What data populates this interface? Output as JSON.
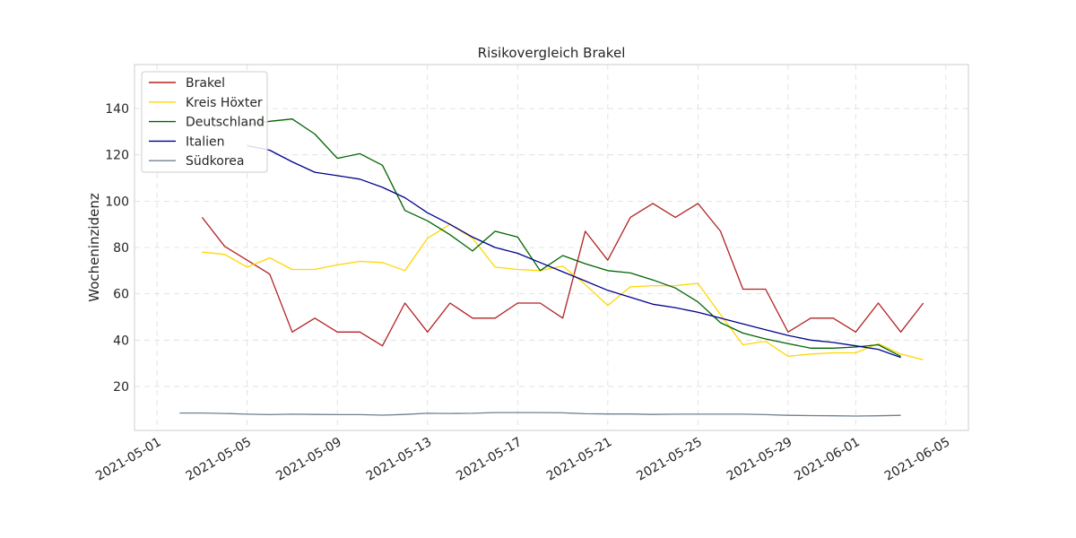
{
  "chart_data": {
    "type": "line",
    "title": "Risikovergleich Brakel",
    "xlabel": "",
    "ylabel": "Wocheninzidenz",
    "xlim": [
      "2021-04-30",
      "2021-06-06"
    ],
    "ylim": [
      1,
      159
    ],
    "x_ticks": [
      "2021-05-01",
      "2021-05-05",
      "2021-05-09",
      "2021-05-13",
      "2021-05-17",
      "2021-05-21",
      "2021-05-25",
      "2021-05-29",
      "2021-06-01",
      "2021-06-05"
    ],
    "y_ticks": [
      20,
      40,
      60,
      80,
      100,
      120,
      140
    ],
    "grid": true,
    "legend_position": "top-left",
    "series": [
      {
        "name": "Brakel",
        "color": "#b22222",
        "start": "2021-05-03",
        "values": [
          93,
          80.5,
          74.5,
          68.5,
          43.5,
          49.5,
          43.5,
          43.5,
          37.5,
          56,
          43.5,
          56,
          49.5,
          49.5,
          56,
          56,
          49.5,
          87,
          74.5,
          93,
          99,
          93,
          99,
          87,
          62,
          62,
          43.5,
          49.5,
          49.5,
          43.5,
          56,
          43.5,
          56
        ]
      },
      {
        "name": "Kreis Höxter",
        "color": "#ffd700",
        "start": "2021-05-03",
        "values": [
          78,
          77,
          71.5,
          75.5,
          70.5,
          70.5,
          72.5,
          74,
          73.5,
          70,
          84,
          90,
          84,
          71.5,
          70.5,
          70,
          72,
          64,
          55,
          63,
          63.5,
          63.5,
          64.5,
          51,
          38,
          39.5,
          33,
          34,
          34.5,
          34.5,
          38.5,
          34,
          31.5
        ]
      },
      {
        "name": "Deutschland",
        "color": "#006400",
        "start": "2021-05-05",
        "values": [
          133,
          134.5,
          135.5,
          129,
          118.5,
          120.5,
          115.5,
          96,
          91.5,
          85.5,
          78.5,
          87,
          84.5,
          70,
          76.5,
          73,
          70,
          69,
          66,
          62.5,
          56.5,
          47.5,
          43,
          40.5,
          38.5,
          36.5,
          36.5,
          37,
          38,
          33
        ]
      },
      {
        "name": "Italien",
        "color": "#00008b",
        "start": "2021-05-05",
        "values": [
          124,
          122,
          117,
          112.5,
          111,
          109.5,
          106,
          101.5,
          95,
          90,
          84.5,
          80,
          77.5,
          73.5,
          69.5,
          65.5,
          61.5,
          58.5,
          55.5,
          54,
          52,
          49.5,
          47,
          44.5,
          42,
          40,
          39,
          37.5,
          36,
          32.5
        ]
      },
      {
        "name": "Südkorea",
        "color": "#708090",
        "start": "2021-05-02",
        "values": [
          8.5,
          8.5,
          8.3,
          8.0,
          7.8,
          8.0,
          7.9,
          7.8,
          7.8,
          7.6,
          7.9,
          8.4,
          8.3,
          8.4,
          8.7,
          8.7,
          8.7,
          8.6,
          8.2,
          8.1,
          8.1,
          7.9,
          8.0,
          8.0,
          8.0,
          8.0,
          7.8,
          7.5,
          7.4,
          7.3,
          7.2,
          7.3,
          7.5
        ]
      }
    ]
  }
}
